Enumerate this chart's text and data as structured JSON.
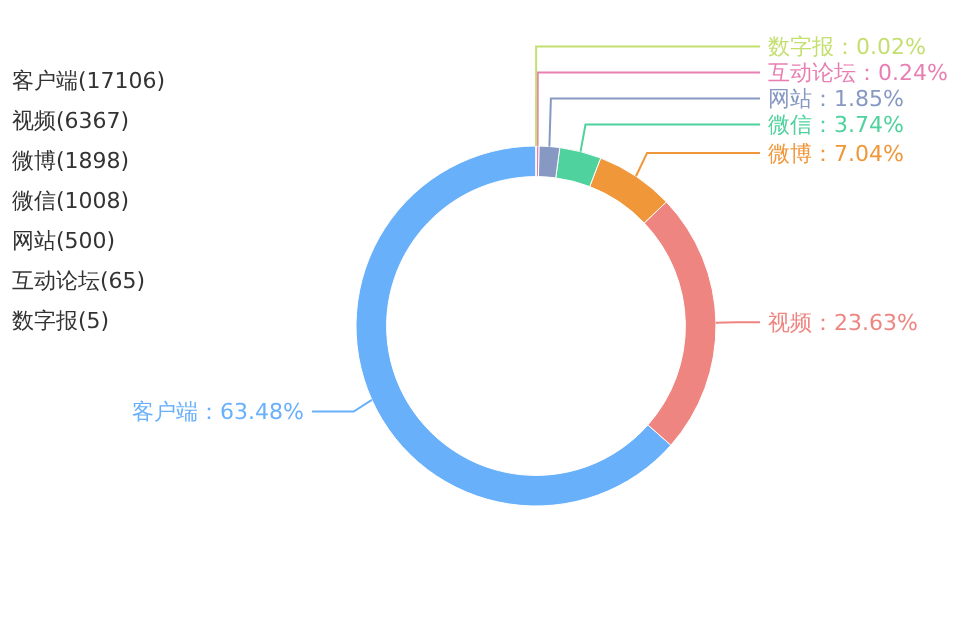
{
  "chart_data": {
    "type": "donut",
    "categories": [
      "客户端",
      "视频",
      "微博",
      "微信",
      "网站",
      "互动论坛",
      "数字报"
    ],
    "values": [
      63.48,
      23.63,
      7.04,
      3.74,
      1.85,
      0.24,
      0.02
    ],
    "colors": [
      "#69b0fb",
      "#ee8581",
      "#f0973a",
      "#4fd29d",
      "#8799c2",
      "#e87fb3",
      "#c3df6f"
    ],
    "value_labels": [
      "63.48%",
      "23.63%",
      "7.04%",
      "3.74%",
      "1.85%",
      "0.24%",
      "0.02%"
    ],
    "annotations": [
      "客户端(17106)",
      "视频(6367)",
      "微博(1898)",
      "微信(1008)",
      "网站(500)",
      "互动论坛(65)",
      "数字报(5)"
    ]
  }
}
